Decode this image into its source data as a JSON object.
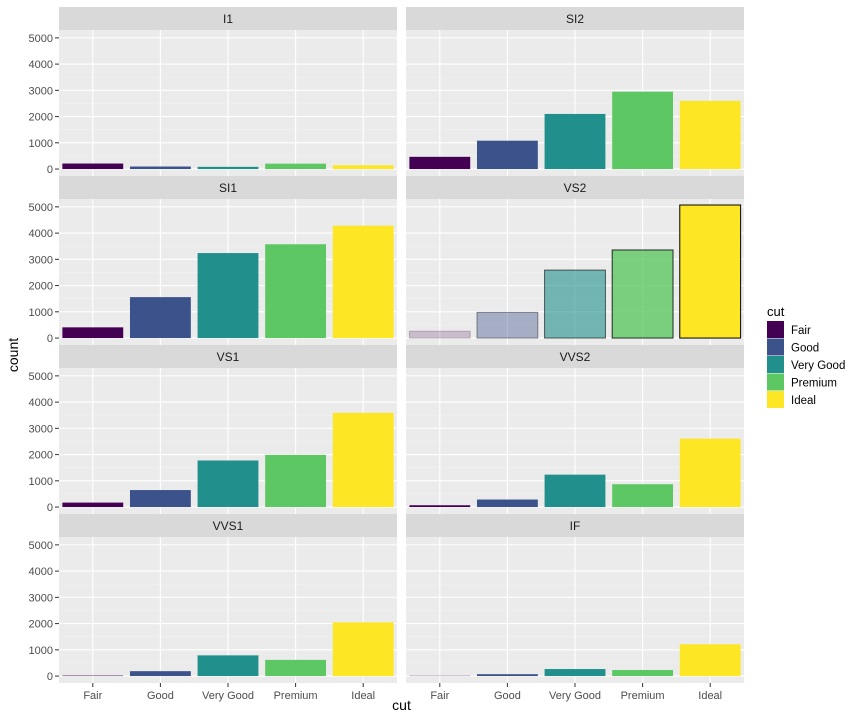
{
  "chart_data": {
    "type": "bar",
    "faceted_by": "clarity",
    "xlabel": "cut",
    "ylabel": "count",
    "categories": [
      "Fair",
      "Good",
      "Very Good",
      "Premium",
      "Ideal"
    ],
    "ylim": [
      0,
      5000
    ],
    "yticks": [
      0,
      1000,
      2000,
      3000,
      4000,
      5000
    ],
    "colors": {
      "Fair": "#440154",
      "Good": "#3b528b",
      "Very Good": "#21908c",
      "Premium": "#5dc863",
      "Ideal": "#fde725"
    },
    "highlighted_panel": "VS2",
    "facets": [
      {
        "name": "I1",
        "values": [
          210,
          96,
          84,
          205,
          146
        ]
      },
      {
        "name": "SI2",
        "values": [
          466,
          1081,
          2100,
          2949,
          2598
        ]
      },
      {
        "name": "SI1",
        "values": [
          408,
          1560,
          3240,
          3575,
          4282
        ]
      },
      {
        "name": "VS2",
        "values": [
          261,
          978,
          2591,
          3357,
          5071
        ]
      },
      {
        "name": "VS1",
        "values": [
          170,
          648,
          1775,
          1989,
          3589
        ]
      },
      {
        "name": "VVS2",
        "values": [
          69,
          286,
          1235,
          870,
          2606
        ]
      },
      {
        "name": "VVS1",
        "values": [
          17,
          186,
          789,
          616,
          2047
        ]
      },
      {
        "name": "IF",
        "values": [
          9,
          71,
          268,
          230,
          1212
        ]
      }
    ],
    "legend": {
      "title": "cut",
      "position": "right",
      "entries": [
        "Fair",
        "Good",
        "Very Good",
        "Premium",
        "Ideal"
      ]
    },
    "grid": true
  }
}
